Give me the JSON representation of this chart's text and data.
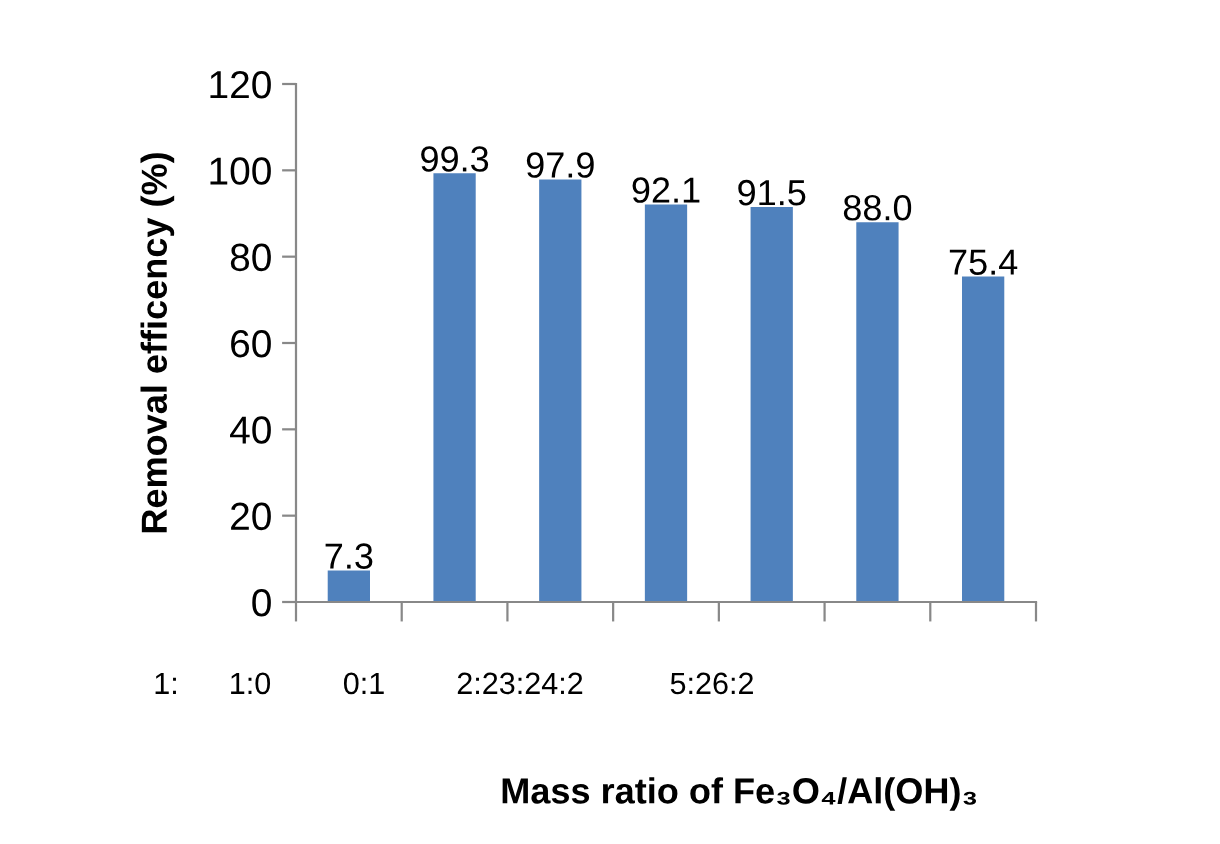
{
  "chart_data": {
    "type": "bar",
    "xlabel": "Mass ratio of Fe₃O₄/Al(OH)₃",
    "ylabel": "Removal efficency (%)",
    "categories": [
      null,
      null,
      null,
      null,
      null,
      null,
      null
    ],
    "values": [
      7.3,
      99.3,
      97.9,
      92.1,
      91.5,
      88.0,
      75.4
    ],
    "value_labels": [
      "7.3",
      "99.3",
      "97.9",
      "92.1",
      "91.5",
      "88.0",
      "75.4"
    ],
    "color": "#4f81bd",
    "ylim": [
      0,
      120
    ],
    "yticks": [
      0,
      20,
      40,
      60,
      80,
      100,
      120
    ],
    "grid": false,
    "annotations": [
      "1:",
      "1:0",
      "0:1",
      "2:23:24:2",
      "5:26:2"
    ]
  }
}
